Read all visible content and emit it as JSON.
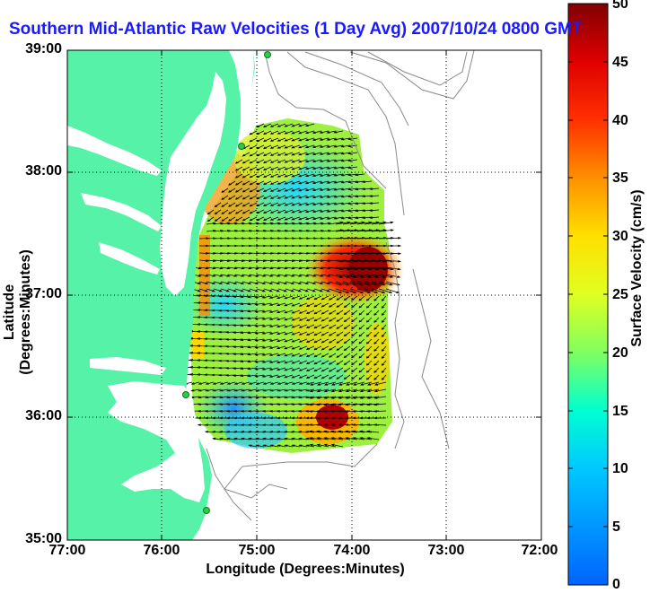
{
  "title": "Southern Mid-Atlantic Raw Velocities (1 Day Avg) 2007/10/24 0800 GMT",
  "axes": {
    "xlabel": "Longitude (Degrees:Minutes)",
    "ylabel": "Latitude (Degrees:Minutes)",
    "x_ticks": [
      "77:00",
      "76:00",
      "75:00",
      "74:00",
      "73:00",
      "72:00"
    ],
    "y_ticks": [
      "39:00",
      "38:00",
      "37:00",
      "36:00",
      "35:00"
    ]
  },
  "colorbar": {
    "label": "Surface Velocity (cm/s)",
    "ticks": [
      "50",
      "45",
      "40",
      "35",
      "30",
      "25",
      "20",
      "15",
      "10",
      "5",
      "0"
    ],
    "range": [
      0,
      50
    ]
  },
  "colors": {
    "land": "#55f2a8",
    "water_bg": "#ffffff",
    "title": "#1a1aff",
    "stations": "#2ecc40",
    "bathymetry": "#888888",
    "arrows": "#000000"
  },
  "stations": [
    {
      "name": "station-1"
    },
    {
      "name": "station-2"
    },
    {
      "name": "station-3"
    },
    {
      "name": "station-4"
    }
  ]
}
